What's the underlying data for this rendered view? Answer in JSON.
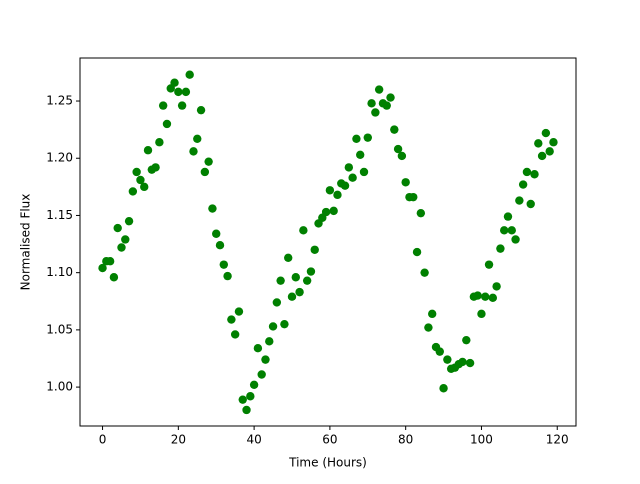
{
  "chart_data": {
    "type": "scatter",
    "xlabel": "Time (Hours)",
    "ylabel": "Normalised Flux",
    "color": "#008000",
    "x": [
      0,
      1,
      2,
      3,
      4,
      5,
      6,
      7,
      8,
      9,
      10,
      11,
      12,
      13,
      14,
      15,
      16,
      17,
      18,
      19,
      20,
      21,
      22,
      23,
      24,
      25,
      26,
      27,
      28,
      29,
      30,
      31,
      32,
      33,
      34,
      35,
      36,
      37,
      38,
      39,
      40,
      41,
      42,
      43,
      44,
      45,
      46,
      47,
      48,
      49,
      50,
      51,
      52,
      53,
      54,
      55,
      56,
      57,
      58,
      59,
      60,
      61,
      62,
      63,
      64,
      65,
      66,
      67,
      68,
      69,
      70,
      71,
      72,
      73,
      74,
      75,
      76,
      77,
      78,
      79,
      80,
      81,
      82,
      83,
      84,
      85,
      86,
      87,
      88,
      89,
      90,
      91,
      92,
      93,
      94,
      95,
      96,
      97,
      98,
      99,
      100,
      101,
      102,
      103,
      104,
      105,
      106,
      107,
      108,
      109,
      110,
      111,
      112,
      113,
      114,
      115,
      116,
      117,
      118,
      119
    ],
    "y": [
      1.104,
      1.11,
      1.11,
      1.096,
      1.139,
      1.122,
      1.129,
      1.145,
      1.171,
      1.188,
      1.181,
      1.175,
      1.207,
      1.19,
      1.192,
      1.214,
      1.246,
      1.23,
      1.261,
      1.266,
      1.258,
      1.246,
      1.258,
      1.273,
      1.206,
      1.217,
      1.242,
      1.188,
      1.197,
      1.156,
      1.134,
      1.124,
      1.107,
      1.097,
      1.059,
      1.046,
      1.066,
      0.989,
      0.98,
      0.992,
      1.002,
      1.034,
      1.011,
      1.024,
      1.04,
      1.053,
      1.074,
      1.093,
      1.055,
      1.113,
      1.079,
      1.096,
      1.083,
      1.137,
      1.093,
      1.101,
      1.12,
      1.143,
      1.148,
      1.153,
      1.172,
      1.154,
      1.168,
      1.178,
      1.176,
      1.192,
      1.183,
      1.217,
      1.203,
      1.188,
      1.218,
      1.248,
      1.24,
      1.26,
      1.248,
      1.246,
      1.253,
      1.225,
      1.208,
      1.202,
      1.179,
      1.166,
      1.166,
      1.118,
      1.152,
      1.1,
      1.052,
      1.064,
      1.035,
      1.031,
      0.999,
      1.024,
      1.016,
      1.017,
      1.02,
      1.022,
      1.041,
      1.021,
      1.079,
      1.08,
      1.064,
      1.079,
      1.107,
      1.078,
      1.088,
      1.121,
      1.137,
      1.149,
      1.137,
      1.129,
      1.163,
      1.177,
      1.188,
      1.16,
      1.186,
      1.213,
      1.202,
      1.222,
      1.206,
      1.214
    ],
    "xlim": [
      -5.95,
      124.95
    ],
    "ylim": [
      0.966,
      1.2876
    ],
    "xticks": [
      0,
      20,
      40,
      60,
      80,
      100,
      120
    ],
    "yticks": [
      {
        "value": 1.0,
        "label": "1.00"
      },
      1.05,
      {
        "value": 1.1,
        "label": "1.10"
      },
      1.15,
      {
        "value": 1.2,
        "label": "1.20"
      },
      1.25
    ]
  }
}
